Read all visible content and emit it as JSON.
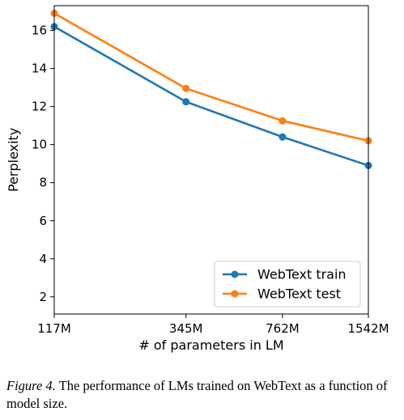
{
  "chart_data": {
    "type": "line",
    "xlabel": "# of parameters in LM",
    "ylabel": "Perplexity",
    "categories": [
      "117M",
      "345M",
      "762M",
      "1542M"
    ],
    "x": [
      117,
      345,
      762,
      1542
    ],
    "xscale": "log",
    "ylim": [
      1.1,
      17.3
    ],
    "yticks": [
      2,
      4,
      6,
      8,
      10,
      12,
      14,
      16
    ],
    "series": [
      {
        "name": "WebText train",
        "values": [
          16.2,
          12.25,
          10.4,
          8.9
        ],
        "color": "#1f77b4"
      },
      {
        "name": "WebText test",
        "values": [
          16.9,
          12.95,
          11.25,
          10.2
        ],
        "color": "#ff7f0e"
      }
    ],
    "legend": "lower-right",
    "grid": false
  },
  "caption": {
    "label": "Figure 4.",
    "text": " The performance of LMs trained on WebText as a function of model size."
  }
}
